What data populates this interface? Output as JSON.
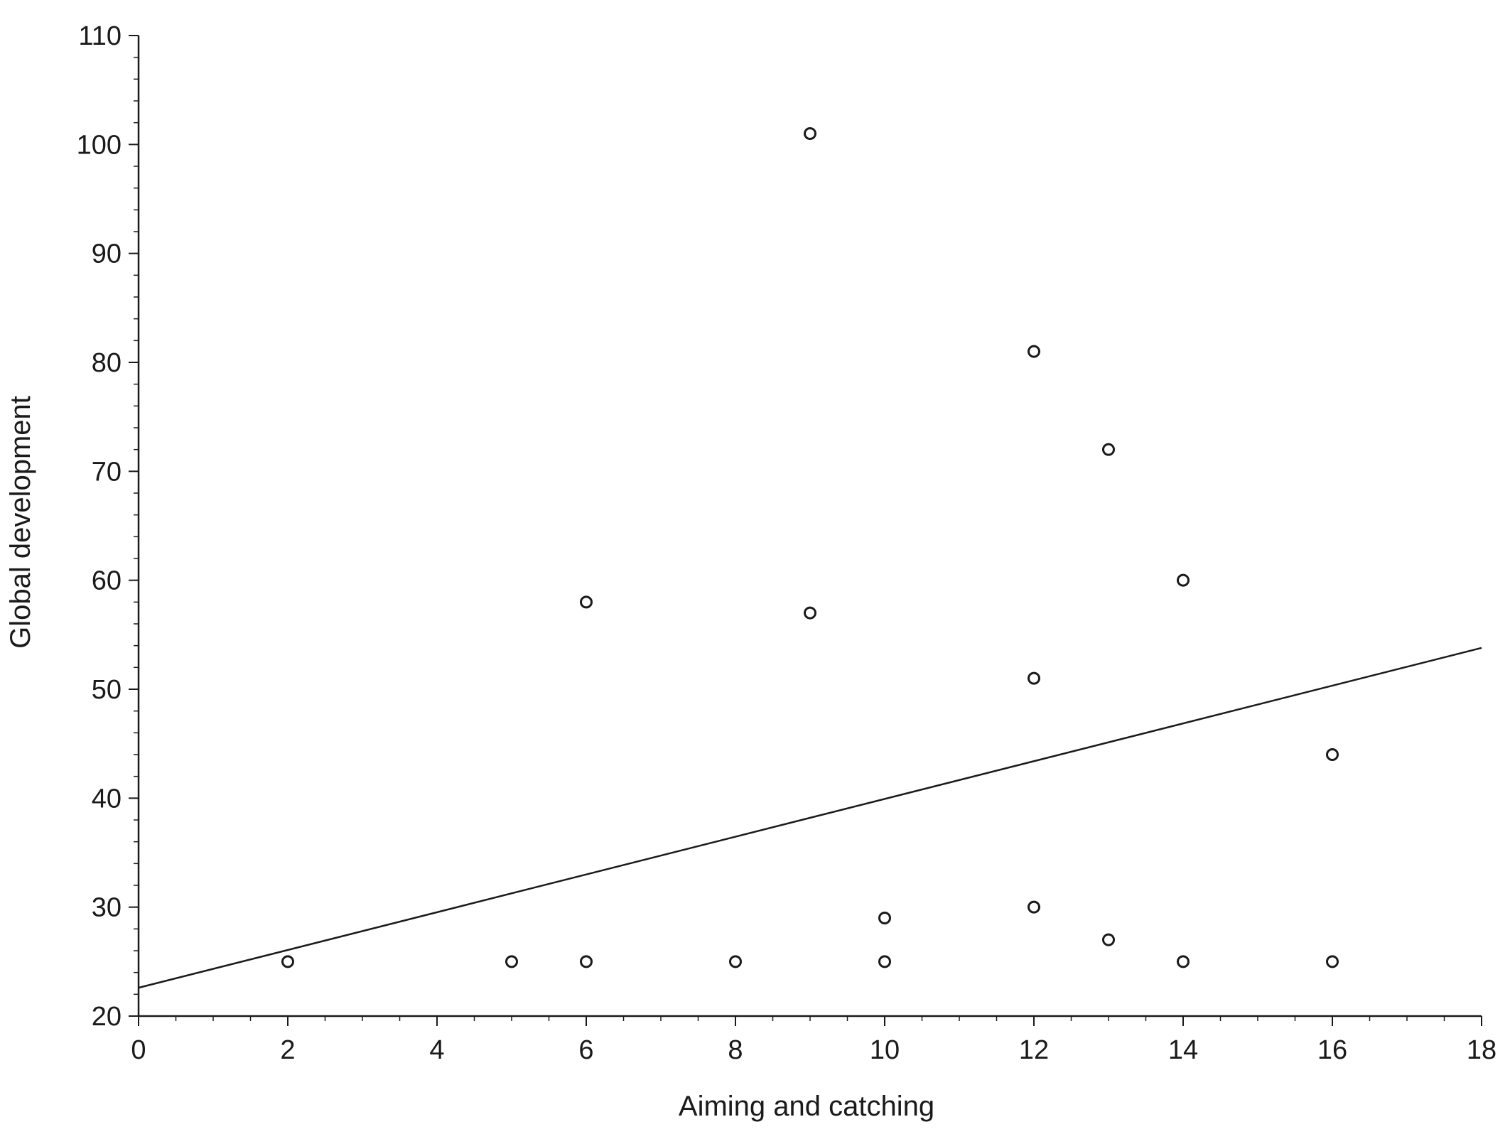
{
  "chart_data": {
    "type": "scatter",
    "title": "",
    "xlabel": "Aiming and catching",
    "ylabel": "Global development",
    "xlim": [
      0,
      18
    ],
    "ylim": [
      20,
      110
    ],
    "x_ticks": [
      0,
      2,
      4,
      6,
      8,
      10,
      12,
      14,
      16,
      18
    ],
    "y_ticks": [
      20,
      30,
      40,
      50,
      60,
      70,
      80,
      90,
      100,
      110
    ],
    "x_tick_labels": [
      "0",
      "2",
      "4",
      "6",
      "8",
      "10",
      "12",
      "14",
      "16",
      "18"
    ],
    "y_tick_labels": [
      "20",
      "30",
      "40",
      "50",
      "60",
      "70",
      "80",
      "90",
      "100",
      "110"
    ],
    "grid": false,
    "points": [
      {
        "x": 2,
        "y": 25
      },
      {
        "x": 5,
        "y": 25
      },
      {
        "x": 6,
        "y": 25
      },
      {
        "x": 6,
        "y": 58
      },
      {
        "x": 8,
        "y": 25
      },
      {
        "x": 9,
        "y": 101
      },
      {
        "x": 9,
        "y": 57
      },
      {
        "x": 10,
        "y": 29
      },
      {
        "x": 10,
        "y": 25
      },
      {
        "x": 12,
        "y": 81
      },
      {
        "x": 12,
        "y": 51
      },
      {
        "x": 12,
        "y": 30
      },
      {
        "x": 13,
        "y": 72
      },
      {
        "x": 13,
        "y": 27
      },
      {
        "x": 14,
        "y": 60
      },
      {
        "x": 14,
        "y": 25
      },
      {
        "x": 16,
        "y": 44
      },
      {
        "x": 16,
        "y": 25
      }
    ],
    "regression_line": {
      "intercept": 22.6,
      "slope": 1.733
    },
    "colors": {
      "axis": "#1a1a1a",
      "marker": "#1a1a1a",
      "line": "#1a1a1a",
      "background": "#ffffff"
    }
  }
}
